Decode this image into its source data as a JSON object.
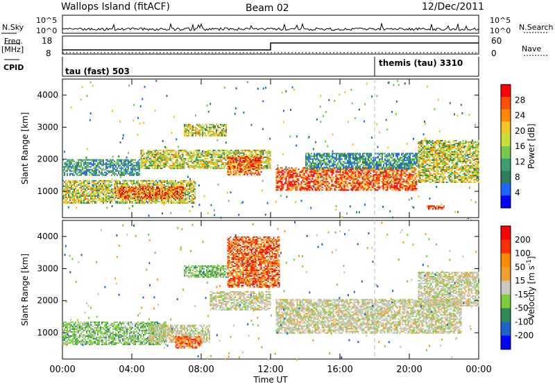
{
  "header": {
    "station": "Wallops Island (fitACF)",
    "beam": "Beam 02",
    "date": "12/Dec/2011"
  },
  "top_panels": {
    "nsky_label": "N.Sky",
    "nsky_ticks": [
      "10^5",
      "10^0"
    ],
    "nsearch_label": "N.Search",
    "nsearch_ticks": [
      "10^5",
      "10^0"
    ],
    "freq_label": "Freq.",
    "freq_unit": "[MHz]",
    "freq_ticks": [
      "18",
      "8"
    ],
    "nave_label": "Nave",
    "nave_ticks": [
      "60",
      "0"
    ],
    "cpid_label": "CPID",
    "cpid_segments": [
      {
        "label": "tau (fast) 503",
        "start_hour": 0
      },
      {
        "label": "themis (tau) 3310",
        "start_hour": 18
      }
    ]
  },
  "chart_data": [
    {
      "type": "heatmap",
      "quantity": "Power",
      "ylabel": "Slant Range [km]",
      "xlabel": "Time UT",
      "x_ticks": [
        "00:00",
        "04:00",
        "08:00",
        "12:00",
        "16:00",
        "20:00",
        "00:00"
      ],
      "x_range_hours": [
        0,
        24
      ],
      "y_ticks": [
        1000,
        2000,
        3000,
        4000
      ],
      "ylim": [
        180,
        4500
      ],
      "colorbar_title": "Power [dB]",
      "colorbar_ticks": [
        "28",
        "24",
        "20",
        "16",
        "12",
        "8",
        "4"
      ],
      "colorbar_colors": [
        "#0000ff",
        "#1e64ff",
        "#2e7d5b",
        "#3c9e6e",
        "#78c850",
        "#c8dc3c",
        "#f0c828",
        "#ff8c00",
        "#ff5000",
        "#ff0000"
      ],
      "marker_hour": 18,
      "echo_regions": [
        {
          "t0": 0.0,
          "t1": 7.7,
          "r0": 620,
          "r1": 1350,
          "level": "mid"
        },
        {
          "t0": 3.0,
          "t1": 7.0,
          "r0": 780,
          "r1": 1150,
          "level": "high"
        },
        {
          "t0": 0.0,
          "t1": 4.5,
          "r0": 1500,
          "r1": 2000,
          "level": "low"
        },
        {
          "t0": 4.5,
          "t1": 12.0,
          "r0": 1700,
          "r1": 2300,
          "level": "mid"
        },
        {
          "t0": 7.0,
          "t1": 9.5,
          "r0": 2700,
          "r1": 3100,
          "level": "mid"
        },
        {
          "t0": 9.5,
          "t1": 11.5,
          "r0": 1500,
          "r1": 2100,
          "level": "high"
        },
        {
          "t0": 12.3,
          "t1": 20.5,
          "r0": 1000,
          "r1": 1750,
          "level": "high"
        },
        {
          "t0": 14.0,
          "t1": 20.5,
          "r0": 1700,
          "r1": 2200,
          "level": "low"
        },
        {
          "t0": 20.5,
          "t1": 24.0,
          "r0": 1250,
          "r1": 2600,
          "level": "mid"
        },
        {
          "t0": 21.0,
          "t1": 22.0,
          "r0": 420,
          "r1": 560,
          "level": "high"
        }
      ]
    },
    {
      "type": "heatmap",
      "quantity": "Velocity",
      "ylabel": "Slant Range [km]",
      "xlabel": "Time UT",
      "x_ticks": [
        "00:00",
        "04:00",
        "08:00",
        "12:00",
        "16:00",
        "20:00",
        "00:00"
      ],
      "x_range_hours": [
        0,
        24
      ],
      "y_ticks": [
        1000,
        2000,
        3000,
        4000
      ],
      "ylim": [
        180,
        4500
      ],
      "colorbar_title": "Velocity [m s",
      "colorbar_title_exp": "-1",
      "colorbar_title_end": "]",
      "colorbar_ticks": [
        "200",
        "100",
        "50",
        "15",
        "-15",
        "-50",
        "-100",
        "-200"
      ],
      "colorbar_colors": [
        "#0000ff",
        "#1e64c8",
        "#2e8b57",
        "#7ccd3c",
        "#c8c8c0",
        "#f0a030",
        "#ff8c00",
        "#ff3000",
        "#ff0000"
      ],
      "marker_hour": 18,
      "echo_regions": [
        {
          "t0": 0.0,
          "t1": 6.0,
          "r0": 620,
          "r1": 1350,
          "level": "pos"
        },
        {
          "t0": 5.0,
          "t1": 8.5,
          "r0": 700,
          "r1": 1250,
          "level": "gray"
        },
        {
          "t0": 6.5,
          "t1": 8.0,
          "r0": 500,
          "r1": 900,
          "level": "neg"
        },
        {
          "t0": 8.5,
          "t1": 12.0,
          "r0": 1700,
          "r1": 2300,
          "level": "gray"
        },
        {
          "t0": 7.0,
          "t1": 9.5,
          "r0": 2700,
          "r1": 3100,
          "level": "pos"
        },
        {
          "t0": 12.3,
          "t1": 23.0,
          "r0": 950,
          "r1": 2050,
          "level": "gray"
        },
        {
          "t0": 20.5,
          "t1": 24.0,
          "r0": 1800,
          "r1": 2900,
          "level": "gray"
        },
        {
          "t0": 9.5,
          "t1": 12.5,
          "r0": 2400,
          "r1": 4000,
          "level": "neg"
        }
      ]
    }
  ]
}
